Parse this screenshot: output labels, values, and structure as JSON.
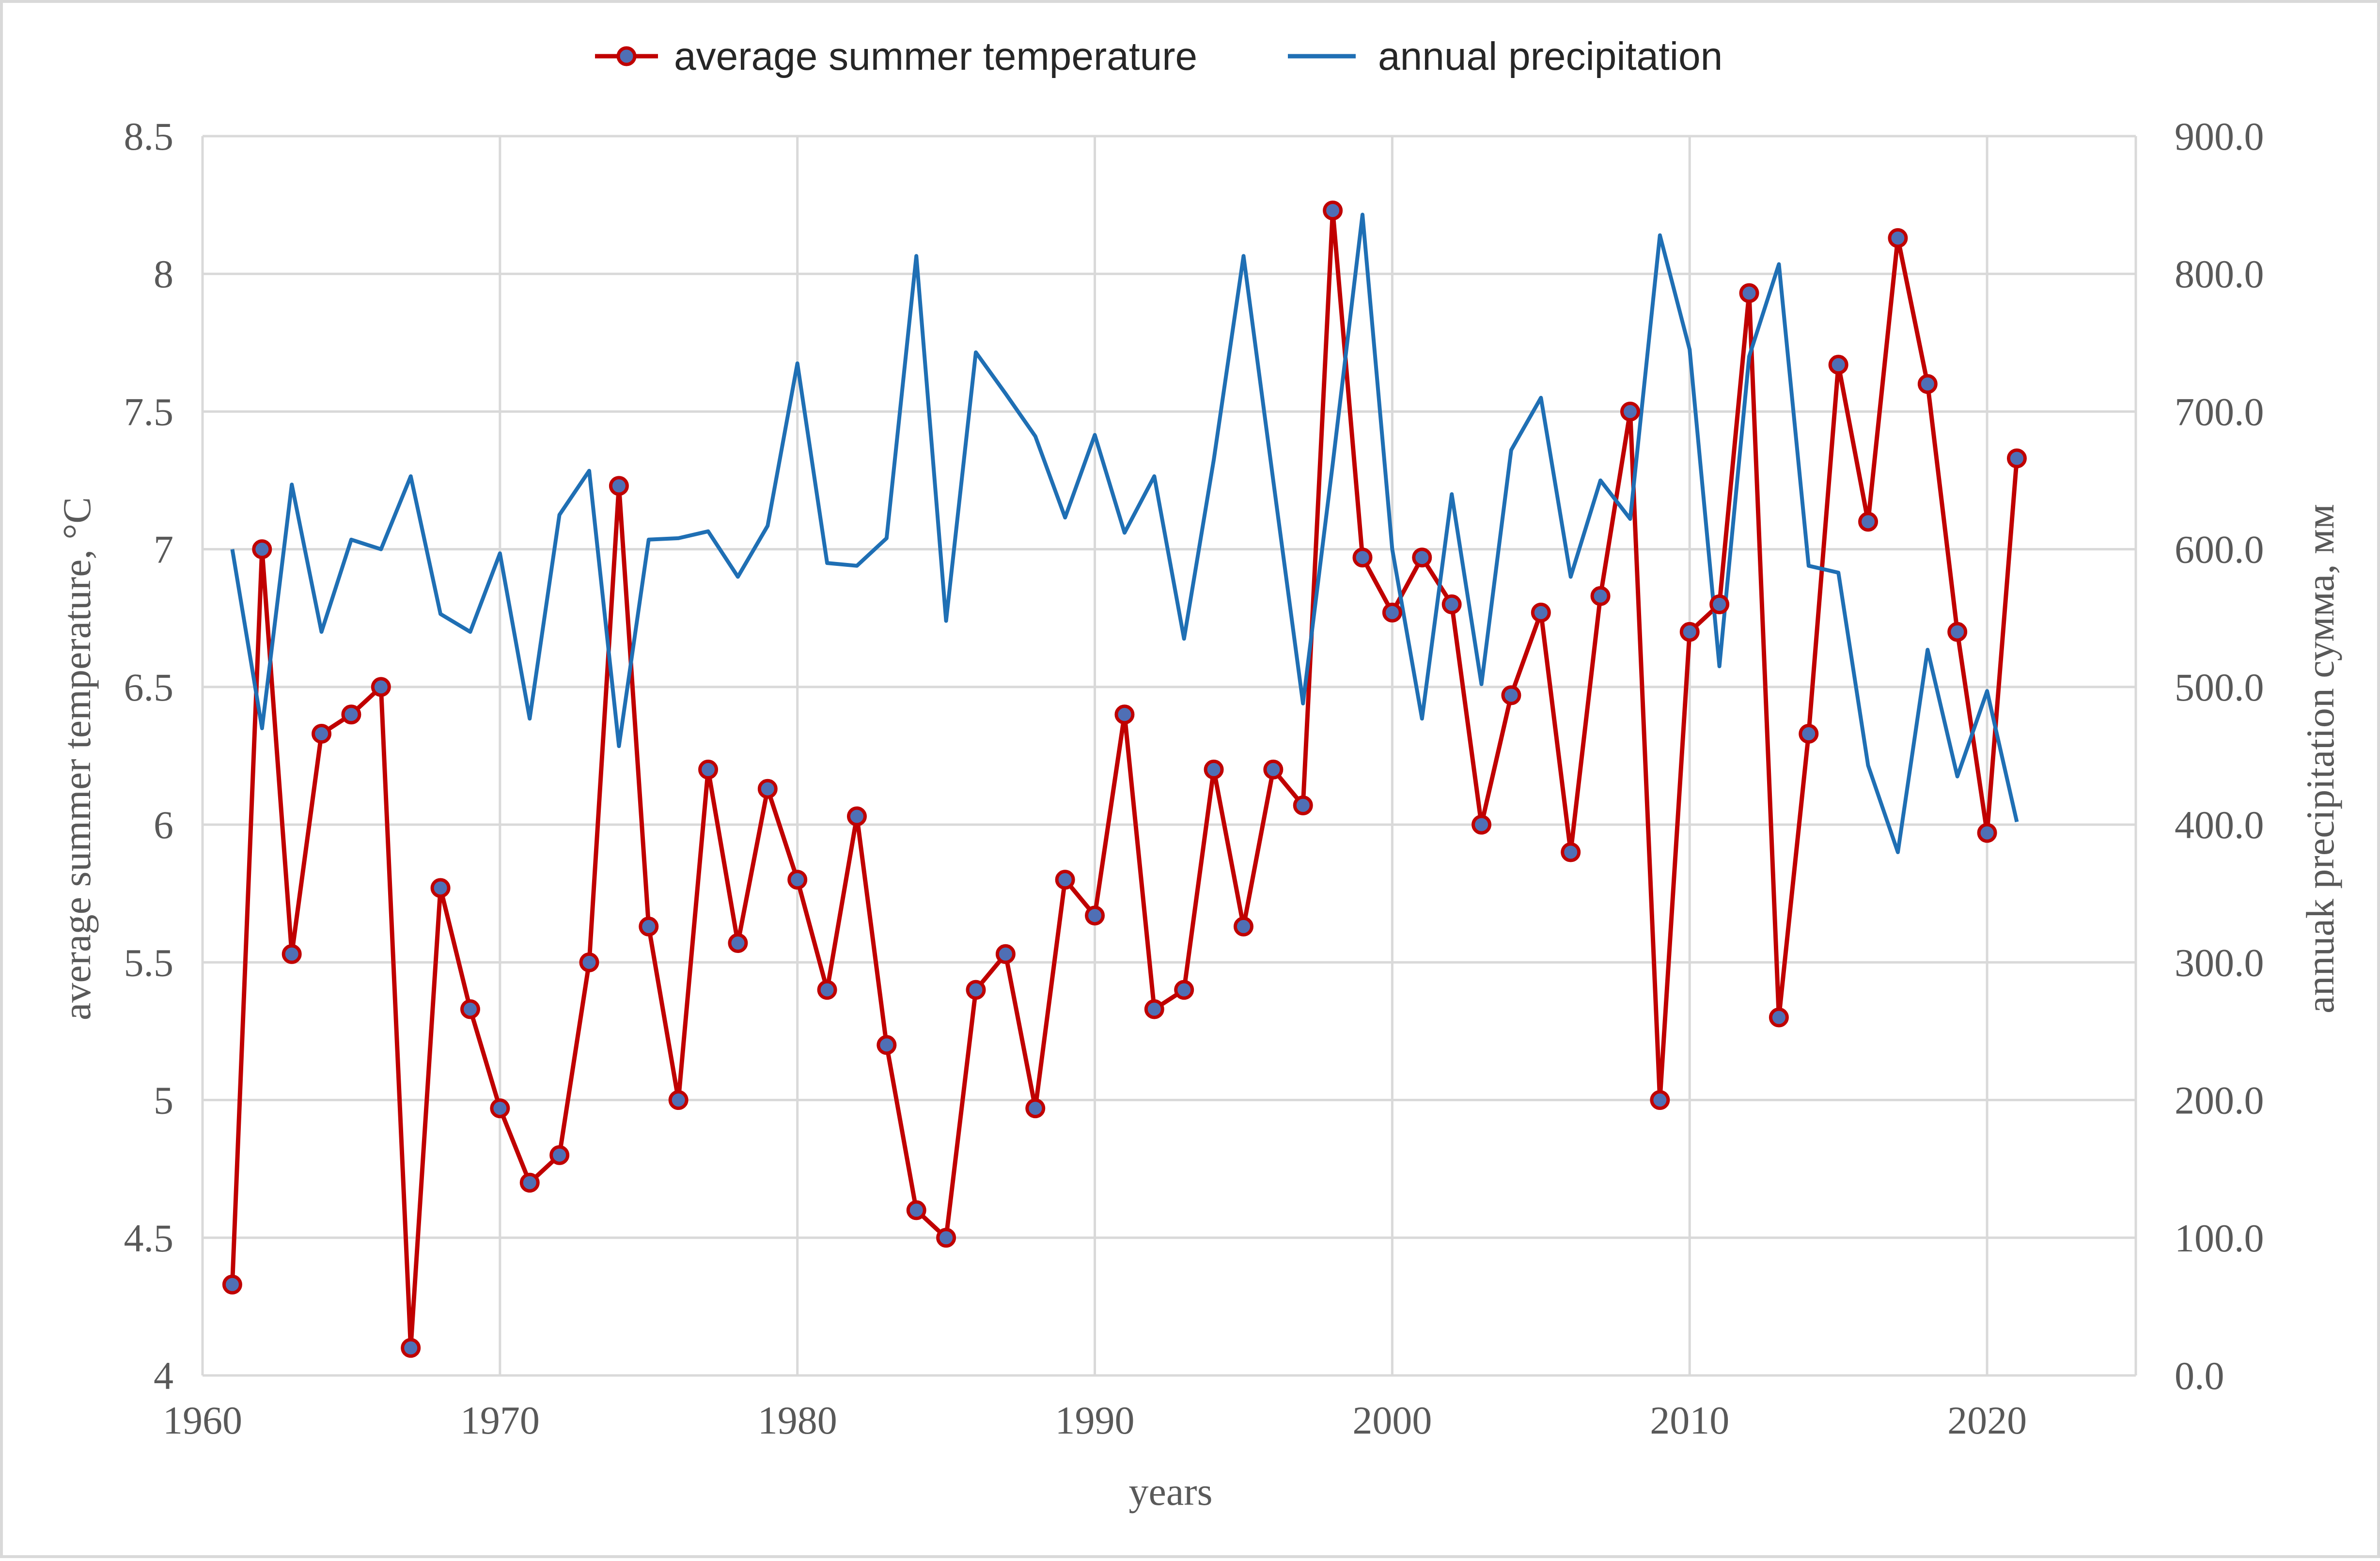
{
  "chart_data": {
    "type": "line",
    "title": "",
    "xlabel": "years",
    "ylabel_left": "average summer temperature, °C",
    "ylabel_right": "annuak precipitation сумма, мм",
    "xlim": [
      1960,
      2025
    ],
    "ylim_left": [
      4,
      8.5
    ],
    "ylim_right": [
      0,
      900
    ],
    "x_ticks": [
      "1960",
      "1970",
      "1980",
      "1990",
      "2000",
      "2010",
      "2020"
    ],
    "y_left_ticks": [
      "4",
      "4.5",
      "5",
      "5.5",
      "6",
      "6.5",
      "7",
      "7.5",
      "8",
      "8.5"
    ],
    "y_right_ticks": [
      "0.0",
      "100.0",
      "200.0",
      "300.0",
      "400.0",
      "500.0",
      "600.0",
      "700.0",
      "800.0",
      "900.0"
    ],
    "grid": true,
    "legend_position": "top",
    "series": [
      {
        "name": "average summer temperature",
        "axis": "left",
        "color": "#c00000",
        "marker_color": "#4f6fb5",
        "x": [
          1961,
          1962,
          1963,
          1964,
          1965,
          1966,
          1967,
          1968,
          1969,
          1970,
          1971,
          1972,
          1973,
          1974,
          1975,
          1976,
          1977,
          1978,
          1979,
          1980,
          1981,
          1982,
          1983,
          1984,
          1985,
          1986,
          1987,
          1988,
          1989,
          1990,
          1991,
          1992,
          1993,
          1994,
          1995,
          1996,
          1997,
          1998,
          1999,
          2000,
          2001,
          2002,
          2003,
          2004,
          2005,
          2006,
          2007,
          2008,
          2009,
          2010,
          2011,
          2012,
          2013,
          2014,
          2015,
          2016,
          2017,
          2018,
          2019,
          2020,
          2021
        ],
        "values": [
          4.33,
          7.0,
          5.53,
          6.33,
          6.4,
          6.5,
          4.1,
          5.77,
          5.33,
          4.97,
          4.7,
          4.8,
          5.5,
          7.23,
          5.63,
          5.0,
          6.2,
          5.57,
          6.13,
          5.8,
          5.4,
          6.03,
          5.2,
          4.6,
          4.5,
          5.4,
          5.53,
          4.97,
          5.8,
          5.67,
          6.4,
          5.33,
          5.4,
          6.2,
          5.63,
          6.2,
          6.07,
          8.23,
          6.97,
          6.77,
          6.97,
          6.8,
          6.0,
          6.47,
          6.77,
          5.9,
          6.83,
          7.5,
          5.0,
          6.7,
          6.8,
          7.93,
          5.3,
          6.33,
          7.67,
          7.1,
          8.13,
          7.6,
          6.7,
          5.97,
          7.33
        ]
      },
      {
        "name": "annual precipitation",
        "axis": "right",
        "color": "#1f6fb4",
        "x": [
          1961,
          1962,
          1963,
          1964,
          1965,
          1966,
          1967,
          1968,
          1969,
          1970,
          1971,
          1972,
          1973,
          1974,
          1975,
          1976,
          1977,
          1978,
          1979,
          1980,
          1981,
          1982,
          1983,
          1984,
          1985,
          1986,
          1987,
          1988,
          1989,
          1990,
          1991,
          1992,
          1993,
          1994,
          1995,
          1996,
          1997,
          1998,
          1999,
          2000,
          2001,
          2002,
          2003,
          2004,
          2005,
          2006,
          2007,
          2008,
          2009,
          2010,
          2011,
          2012,
          2013,
          2014,
          2015,
          2016,
          2017,
          2018,
          2019,
          2020,
          2021
        ],
        "values": [
          600,
          470,
          647,
          540,
          607,
          600,
          653,
          553,
          540,
          597,
          477,
          625,
          657,
          457,
          607,
          608,
          613,
          580,
          617,
          735,
          590,
          588,
          608,
          813,
          548,
          743,
          713,
          682,
          623,
          683,
          612,
          653,
          535,
          665,
          813,
          650,
          488,
          662,
          843,
          600,
          477,
          640,
          502,
          672,
          710,
          580,
          650,
          622,
          828,
          745,
          515,
          740,
          807,
          588,
          583,
          443,
          380,
          527,
          435,
          497,
          402
        ]
      }
    ]
  }
}
